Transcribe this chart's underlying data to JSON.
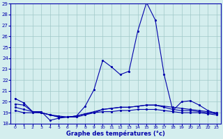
{
  "title": "Graphe des températures (°c)",
  "bg_color": "#d4eeee",
  "grid_color": "#a0c8c8",
  "line_color": "#0000aa",
  "xlim": [
    -0.5,
    23.5
  ],
  "ylim": [
    18,
    29
  ],
  "yticks": [
    18,
    19,
    20,
    21,
    22,
    23,
    24,
    25,
    26,
    27,
    28,
    29
  ],
  "xticks": [
    0,
    1,
    2,
    3,
    4,
    5,
    6,
    7,
    8,
    9,
    10,
    11,
    12,
    13,
    14,
    15,
    16,
    17,
    18,
    19,
    20,
    21,
    22,
    23
  ],
  "series": [
    {
      "x": [
        0,
        1,
        2,
        3,
        4,
        5,
        6,
        7,
        8,
        9,
        10,
        11,
        12,
        13,
        14,
        15,
        16,
        17,
        18,
        19,
        20,
        21,
        22,
        23
      ],
      "y": [
        20.3,
        19.9,
        19.1,
        19.1,
        18.3,
        18.5,
        18.6,
        18.7,
        19.6,
        21.1,
        23.8,
        23.2,
        22.5,
        22.8,
        26.5,
        29.1,
        27.5,
        22.5,
        19.2,
        20.0,
        20.1,
        19.7,
        19.2,
        18.9
      ]
    },
    {
      "x": [
        0,
        1,
        2,
        3,
        4,
        5,
        6,
        7,
        8,
        9,
        10,
        11,
        12,
        13,
        14,
        15,
        16,
        17,
        18,
        19,
        20,
        21,
        22,
        23
      ],
      "y": [
        19.8,
        19.7,
        19.1,
        19.0,
        18.8,
        18.7,
        18.6,
        18.6,
        18.8,
        19.0,
        19.3,
        19.4,
        19.5,
        19.5,
        19.6,
        19.7,
        19.7,
        19.6,
        19.5,
        19.4,
        19.3,
        19.2,
        19.1,
        19.0
      ]
    },
    {
      "x": [
        0,
        1,
        2,
        3,
        4,
        5,
        6,
        7,
        8,
        9,
        10,
        11,
        12,
        13,
        14,
        15,
        16,
        17,
        18,
        19,
        20,
        21,
        22,
        23
      ],
      "y": [
        19.5,
        19.3,
        19.1,
        19.0,
        18.8,
        18.6,
        18.6,
        18.7,
        18.9,
        19.1,
        19.3,
        19.4,
        19.5,
        19.5,
        19.6,
        19.7,
        19.7,
        19.5,
        19.3,
        19.2,
        19.2,
        19.1,
        19.0,
        18.9
      ]
    },
    {
      "x": [
        0,
        1,
        2,
        3,
        4,
        5,
        6,
        7,
        8,
        9,
        10,
        11,
        12,
        13,
        14,
        15,
        16,
        17,
        18,
        19,
        20,
        21,
        22,
        23
      ],
      "y": [
        19.2,
        19.0,
        19.0,
        19.0,
        18.8,
        18.6,
        18.6,
        18.7,
        18.9,
        19.0,
        19.1,
        19.1,
        19.2,
        19.2,
        19.3,
        19.3,
        19.3,
        19.2,
        19.1,
        19.0,
        19.0,
        19.0,
        18.9,
        18.8
      ]
    }
  ]
}
